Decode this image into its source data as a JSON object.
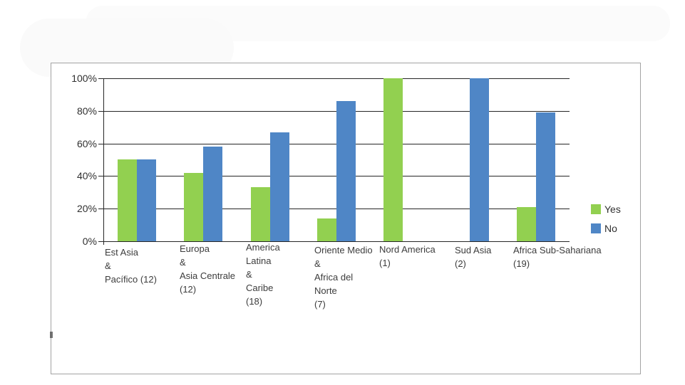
{
  "chart_data": {
    "type": "bar",
    "title": "",
    "categories": [
      "Est Asia & Pacífico (12)",
      "Europa & Asia Centrale (12)",
      "America Latina & Caribe (18)",
      "Oriente Medio & Africa del Norte (7)",
      "Nord America (1)",
      "Sud Asia (2)",
      "Africa Sub-Sahariana (19)"
    ],
    "category_label_lines": [
      [
        "Est Asia",
        "&",
        "Pacífico (12)"
      ],
      [
        "Europa",
        "&",
        "Asia Centrale",
        "(12)"
      ],
      [
        "America",
        "Latina",
        "&",
        "Caribe",
        "(18)"
      ],
      [
        "Oriente Medio",
        "&",
        "Africa del",
        "Norte",
        "(7)"
      ],
      [
        "Nord America",
        "(1)"
      ],
      [
        "Sud Asia",
        "(2)"
      ],
      [
        "Africa Sub-Sahariana",
        "(19)"
      ]
    ],
    "series": [
      {
        "name": "Yes",
        "color": "#92D050",
        "values": [
          50,
          42,
          33,
          14,
          100,
          0,
          21
        ]
      },
      {
        "name": "No",
        "color": "#4F86C6",
        "values": [
          50,
          58,
          67,
          86,
          0,
          100,
          79
        ]
      }
    ],
    "y_tick_labels": [
      "100%",
      "80%",
      "60%",
      "40%",
      "20%",
      "0%"
    ],
    "ylim": [
      0,
      100
    ],
    "y_axis_format": "percent",
    "grid": true,
    "legend_position": "right-inside"
  },
  "colors": {
    "yes_green": "#92D050",
    "no_blue": "#4F86C6",
    "gridline": "#262626",
    "frame_border": "#a3a3a3",
    "text": "#3c3c3c"
  }
}
